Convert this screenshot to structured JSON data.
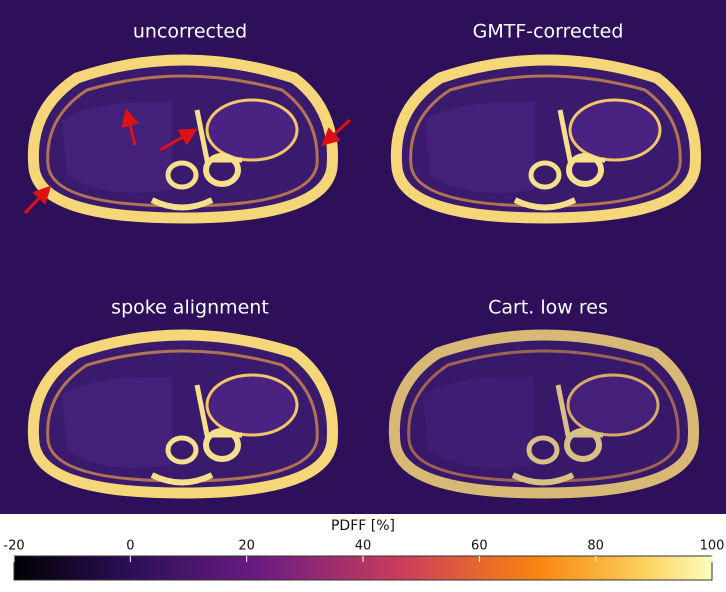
{
  "panels": [
    {
      "title": "uncorrected"
    },
    {
      "title": "GMTF-corrected"
    },
    {
      "title": "spoke alignment"
    },
    {
      "title": "Cart. low res"
    }
  ],
  "colorbar": {
    "label": "PDFF [%]",
    "lim": [
      -20,
      100
    ],
    "ticks": [
      -20,
      0,
      20,
      40,
      60,
      80,
      100
    ]
  }
}
